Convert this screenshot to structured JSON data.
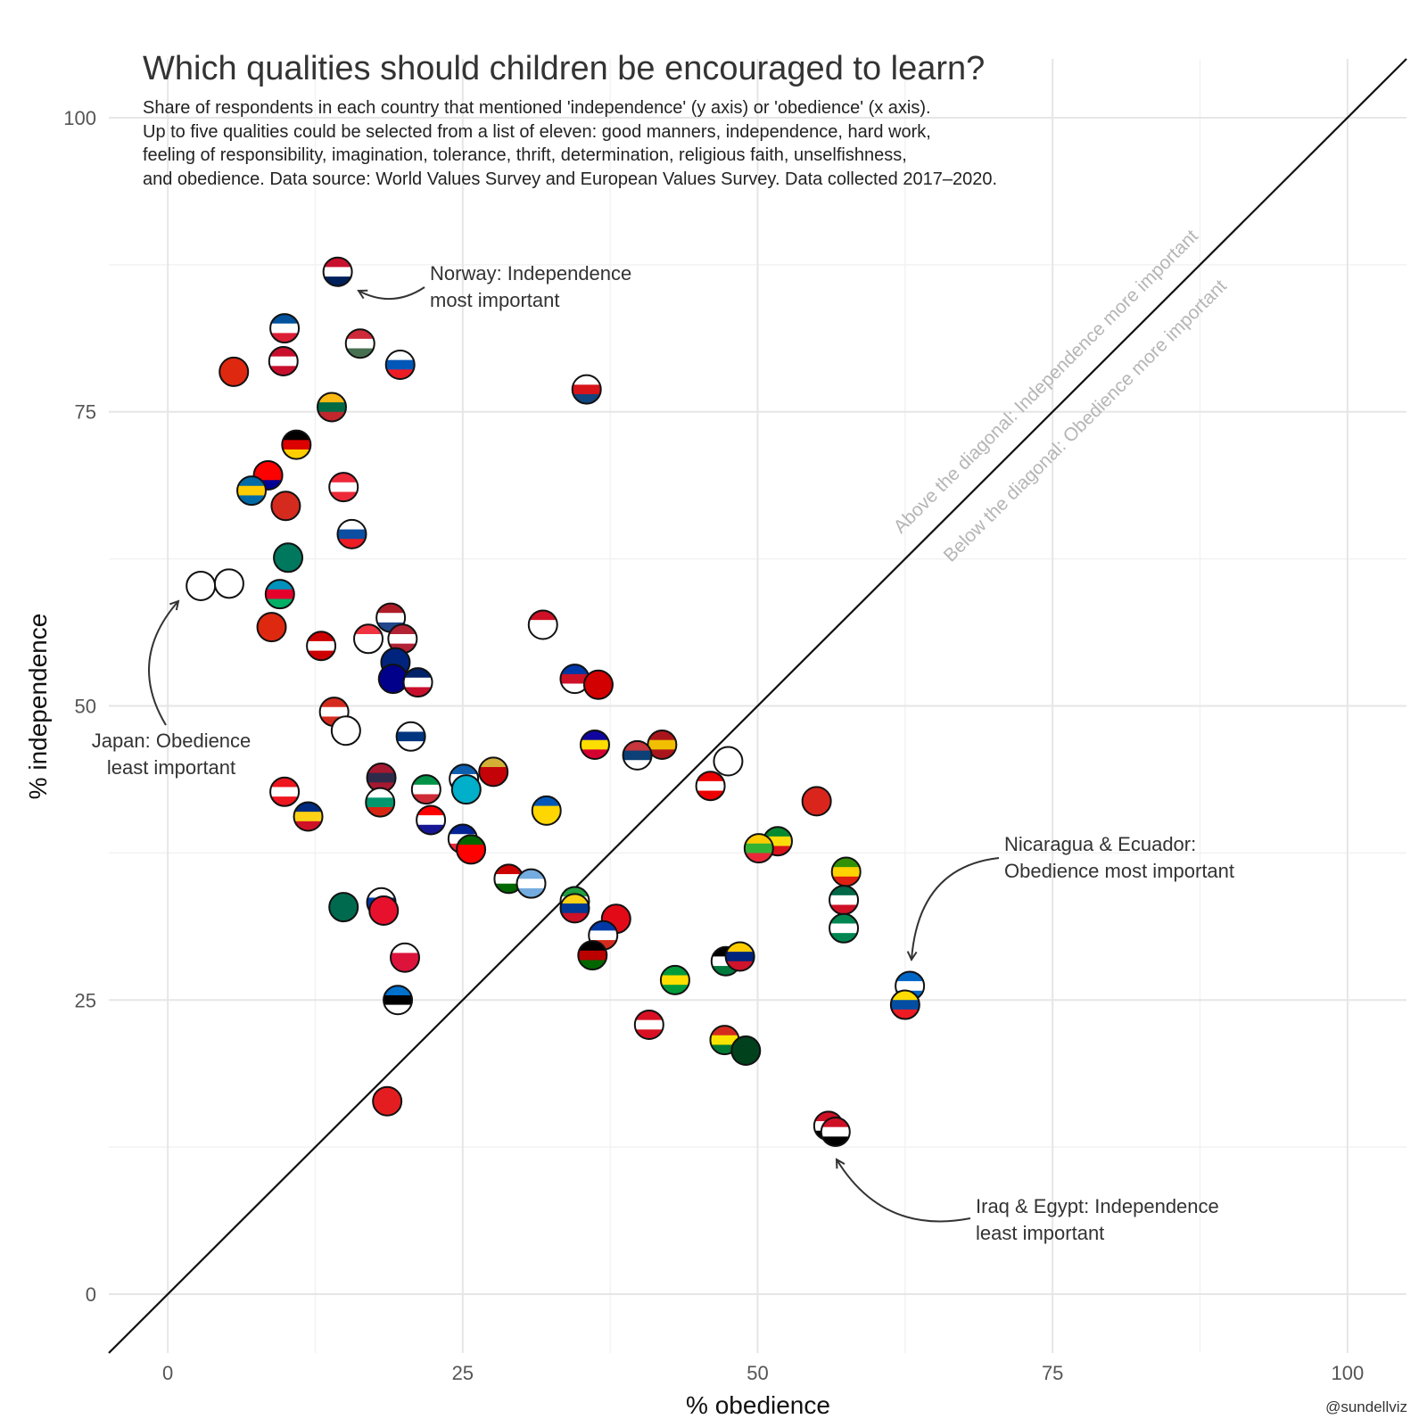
{
  "title": "Which qualities should children be encouraged to learn?",
  "subtitle_lines": [
    "Share of respondents in each country that mentioned 'independence' (y axis) or 'obedience' (x axis).",
    "Up to five qualities could be selected from a list of eleven: good manners, independence, hard work,",
    "feeling of responsibility, imagination, tolerance, thrift, determination, religious faith, unselfishness,",
    "and obedience. Data source: World Values Survey and European Values Survey. Data collected 2017–2020."
  ],
  "credit": "@sundellviz",
  "chart_data": {
    "type": "scatter",
    "title": "Which qualities should children be encouraged to learn?",
    "xlabel": "% obedience",
    "ylabel": "% independence",
    "xlim": [
      -5,
      105
    ],
    "ylim": [
      -5,
      105
    ],
    "x_ticks": [
      "0",
      "25",
      "50",
      "75",
      "100"
    ],
    "y_ticks": [
      "0",
      "25",
      "50",
      "75",
      "100"
    ],
    "diagonal_labels": {
      "above": "Above the diagonal: Independence more important",
      "below": "Below the diagonal: Obedience more important"
    },
    "annotations": [
      {
        "id": "norway",
        "lines": [
          "Norway: Independence",
          "most important"
        ]
      },
      {
        "id": "japan",
        "lines": [
          "Japan: Obedience",
          "least important"
        ]
      },
      {
        "id": "nicaragua",
        "lines": [
          "Nicaragua & Ecuador:",
          "Obedience most important"
        ]
      },
      {
        "id": "iraq",
        "lines": [
          "Iraq & Egypt: Independence",
          "least important"
        ]
      }
    ],
    "points": [
      {
        "flag": "Norway",
        "x": 14.4,
        "y": 86.9,
        "colors": [
          "#c8102e",
          "#ffffff",
          "#00205b"
        ]
      },
      {
        "flag": "Iceland",
        "x": 9.9,
        "y": 82.1,
        "colors": [
          "#02529c",
          "#ffffff",
          "#dc1e35"
        ]
      },
      {
        "flag": "Hungary",
        "x": 16.3,
        "y": 80.8,
        "colors": [
          "#ce2939",
          "#ffffff",
          "#477050"
        ]
      },
      {
        "flag": "Denmark",
        "x": 9.8,
        "y": 79.3,
        "colors": [
          "#c8102e",
          "#ffffff",
          "#c8102e"
        ]
      },
      {
        "flag": "Slovenia",
        "x": 19.7,
        "y": 79.0,
        "colors": [
          "#ffffff",
          "#0057b8",
          "#ed1c24"
        ]
      },
      {
        "flag": "China",
        "x": 5.6,
        "y": 78.4,
        "colors": [
          "#de2910",
          "#de2910",
          "#de2910"
        ]
      },
      {
        "flag": "Czechia",
        "x": 35.5,
        "y": 76.9,
        "colors": [
          "#ffffff",
          "#d7141a",
          "#11457e"
        ]
      },
      {
        "flag": "Lithuania",
        "x": 13.9,
        "y": 75.4,
        "colors": [
          "#fdb913",
          "#006a44",
          "#c1272d"
        ]
      },
      {
        "flag": "Germany",
        "x": 10.9,
        "y": 72.2,
        "colors": [
          "#000000",
          "#dd0000",
          "#ffce00"
        ]
      },
      {
        "flag": "Taiwan",
        "x": 8.5,
        "y": 69.6,
        "colors": [
          "#fe0000",
          "#fe0000",
          "#000095"
        ]
      },
      {
        "flag": "Sweden",
        "x": 7.1,
        "y": 68.3,
        "colors": [
          "#006aa7",
          "#fecc00",
          "#006aa7"
        ]
      },
      {
        "flag": "Austria",
        "x": 14.9,
        "y": 68.6,
        "colors": [
          "#ed2939",
          "#ffffff",
          "#ed2939"
        ]
      },
      {
        "flag": "Switzerland",
        "x": 10.0,
        "y": 67.0,
        "colors": [
          "#d52b1e",
          "#d52b1e",
          "#d52b1e"
        ]
      },
      {
        "flag": "Slovakia",
        "x": 15.6,
        "y": 64.6,
        "colors": [
          "#ffffff",
          "#0b4ea2",
          "#ee1c25"
        ]
      },
      {
        "flag": "Macau",
        "x": 10.2,
        "y": 62.6,
        "colors": [
          "#00785e",
          "#00785e",
          "#00785e"
        ]
      },
      {
        "flag": "Japan",
        "x": 2.8,
        "y": 60.2,
        "colors": [
          "#ffffff",
          "#ffffff",
          "#ffffff"
        ]
      },
      {
        "flag": "South Korea",
        "x": 5.2,
        "y": 60.4,
        "colors": [
          "#ffffff",
          "#ffffff",
          "#ffffff"
        ]
      },
      {
        "flag": "Azerbaijan",
        "x": 9.5,
        "y": 59.5,
        "colors": [
          "#0092bc",
          "#e4002b",
          "#00af66"
        ]
      },
      {
        "flag": "Netherlands",
        "x": 18.9,
        "y": 57.5,
        "colors": [
          "#ae1c28",
          "#ffffff",
          "#21468b"
        ]
      },
      {
        "flag": "Indonesia",
        "x": 31.8,
        "y": 56.9,
        "colors": [
          "#ce1126",
          "#ffffff",
          "#ffffff"
        ]
      },
      {
        "flag": "Hong Kong",
        "x": 8.8,
        "y": 56.7,
        "colors": [
          "#de2910",
          "#de2910",
          "#de2910"
        ]
      },
      {
        "flag": "Singapore",
        "x": 17.0,
        "y": 55.7,
        "colors": [
          "#ef3340",
          "#ffffff",
          "#ffffff"
        ]
      },
      {
        "flag": "USA",
        "x": 19.9,
        "y": 55.7,
        "colors": [
          "#b22234",
          "#ffffff",
          "#b22234"
        ]
      },
      {
        "flag": "Malaysia",
        "x": 13.0,
        "y": 55.1,
        "colors": [
          "#cc0001",
          "#ffffff",
          "#cc0001"
        ]
      },
      {
        "flag": "New Zealand",
        "x": 19.3,
        "y": 53.7,
        "colors": [
          "#00247d",
          "#00247d",
          "#00247d"
        ]
      },
      {
        "flag": "Australia",
        "x": 19.1,
        "y": 52.3,
        "colors": [
          "#00008b",
          "#00008b",
          "#00008b"
        ]
      },
      {
        "flag": "United Kingdom",
        "x": 21.2,
        "y": 52.0,
        "colors": [
          "#012169",
          "#ffffff",
          "#c8102e"
        ]
      },
      {
        "flag": "Philippines",
        "x": 34.5,
        "y": 52.3,
        "colors": [
          "#0038a8",
          "#ce1126",
          "#ffffff"
        ]
      },
      {
        "flag": "North Macedonia",
        "x": 36.5,
        "y": 51.8,
        "colors": [
          "#d20000",
          "#d20000",
          "#d20000"
        ]
      },
      {
        "flag": "Canada",
        "x": 14.1,
        "y": 49.5,
        "colors": [
          "#d52b1e",
          "#ffffff",
          "#d52b1e"
        ]
      },
      {
        "flag": "Georgia",
        "x": 15.1,
        "y": 47.9,
        "colors": [
          "#ffffff",
          "#ffffff",
          "#ffffff"
        ]
      },
      {
        "flag": "Finland",
        "x": 20.6,
        "y": 47.4,
        "colors": [
          "#ffffff",
          "#003580",
          "#ffffff"
        ]
      },
      {
        "flag": "Andorra",
        "x": 36.2,
        "y": 46.7,
        "colors": [
          "#10069f",
          "#fedd00",
          "#d50032"
        ]
      },
      {
        "flag": "Spain",
        "x": 41.9,
        "y": 46.7,
        "colors": [
          "#aa151b",
          "#f1bf00",
          "#aa151b"
        ]
      },
      {
        "flag": "Serbia",
        "x": 39.8,
        "y": 45.8,
        "colors": [
          "#c6363c",
          "#0c4076",
          "#ffffff"
        ]
      },
      {
        "flag": "Cyprus",
        "x": 47.5,
        "y": 45.3,
        "colors": [
          "#ffffff",
          "#ffffff",
          "#ffffff"
        ]
      },
      {
        "flag": "Thailand",
        "x": 18.1,
        "y": 43.9,
        "colors": [
          "#a51931",
          "#2d2a4a",
          "#a51931"
        ]
      },
      {
        "flag": "Greece",
        "x": 25.1,
        "y": 43.8,
        "colors": [
          "#0d5eaf",
          "#ffffff",
          "#0d5eaf"
        ]
      },
      {
        "flag": "Montenegro",
        "x": 27.6,
        "y": 44.4,
        "colors": [
          "#d4af37",
          "#c40308",
          "#c40308"
        ]
      },
      {
        "flag": "Kazakhstan",
        "x": 25.3,
        "y": 42.9,
        "colors": [
          "#00afca",
          "#00afca",
          "#00afca"
        ]
      },
      {
        "flag": "Lebanon",
        "x": 9.9,
        "y": 42.7,
        "colors": [
          "#ee161f",
          "#ffffff",
          "#ee161f"
        ]
      },
      {
        "flag": "Italy",
        "x": 21.9,
        "y": 42.9,
        "colors": [
          "#009246",
          "#ffffff",
          "#ce2b37"
        ]
      },
      {
        "flag": "Puerto Rico",
        "x": 46.0,
        "y": 43.2,
        "colors": [
          "#ed0000",
          "#ffffff",
          "#ed0000"
        ]
      },
      {
        "flag": "Vietnam",
        "x": 55.0,
        "y": 41.9,
        "colors": [
          "#da251d",
          "#da251d",
          "#da251d"
        ]
      },
      {
        "flag": "Bulgaria",
        "x": 18.0,
        "y": 41.8,
        "colors": [
          "#ffffff",
          "#00966e",
          "#d62612"
        ]
      },
      {
        "flag": "Ukraine",
        "x": 32.1,
        "y": 41.1,
        "colors": [
          "#0057b7",
          "#ffd700",
          "#ffd700"
        ]
      },
      {
        "flag": "Romania",
        "x": 11.9,
        "y": 40.6,
        "colors": [
          "#002b7f",
          "#fcd116",
          "#ce1126"
        ]
      },
      {
        "flag": "Croatia",
        "x": 22.3,
        "y": 40.3,
        "colors": [
          "#ff0000",
          "#ffffff",
          "#171796"
        ]
      },
      {
        "flag": "France",
        "x": 25.0,
        "y": 38.7,
        "colors": [
          "#002395",
          "#ffffff",
          "#ed2939"
        ]
      },
      {
        "flag": "Portugal",
        "x": 25.7,
        "y": 37.8,
        "colors": [
          "#006600",
          "#ff0000",
          "#ff0000"
        ]
      },
      {
        "flag": "Ethiopia",
        "x": 51.7,
        "y": 38.5,
        "colors": [
          "#078930",
          "#fcdd09",
          "#da121a"
        ]
      },
      {
        "flag": "Myanmar",
        "x": 50.1,
        "y": 37.9,
        "colors": [
          "#fecb00",
          "#34b233",
          "#ea2839"
        ]
      },
      {
        "flag": "Zimbabwe",
        "x": 57.5,
        "y": 35.9,
        "colors": [
          "#319208",
          "#ffd200",
          "#de2010"
        ]
      },
      {
        "flag": "Tajikistan",
        "x": 28.9,
        "y": 35.3,
        "colors": [
          "#cc0000",
          "#ffffff",
          "#006600"
        ]
      },
      {
        "flag": "Argentina",
        "x": 30.8,
        "y": 34.9,
        "colors": [
          "#74acdf",
          "#ffffff",
          "#74acdf"
        ]
      },
      {
        "flag": "Bangladesh",
        "x": 14.9,
        "y": 32.9,
        "colors": [
          "#006a4e",
          "#006a4e",
          "#006a4e"
        ]
      },
      {
        "flag": "Russia",
        "x": 18.1,
        "y": 33.3,
        "colors": [
          "#ffffff",
          "#0039a6",
          "#d52b1e"
        ]
      },
      {
        "flag": "Kyrgyzstan",
        "x": 18.3,
        "y": 32.6,
        "colors": [
          "#e8112d",
          "#e8112d",
          "#e8112d"
        ]
      },
      {
        "flag": "Iran",
        "x": 34.5,
        "y": 33.4,
        "colors": [
          "#239f40",
          "#ffffff",
          "#da0000"
        ]
      },
      {
        "flag": "Colombia",
        "x": 34.5,
        "y": 32.8,
        "colors": [
          "#fcd116",
          "#003893",
          "#ce1126"
        ]
      },
      {
        "flag": "Mexico",
        "x": 57.3,
        "y": 33.5,
        "colors": [
          "#006847",
          "#ffffff",
          "#ce1126"
        ]
      },
      {
        "flag": "Turkey",
        "x": 38.0,
        "y": 31.9,
        "colors": [
          "#e30a17",
          "#e30a17",
          "#e30a17"
        ]
      },
      {
        "flag": "Chile",
        "x": 36.9,
        "y": 30.5,
        "colors": [
          "#0039a6",
          "#ffffff",
          "#d52b1e"
        ]
      },
      {
        "flag": "Nigeria",
        "x": 57.3,
        "y": 31.1,
        "colors": [
          "#008751",
          "#ffffff",
          "#008751"
        ]
      },
      {
        "flag": "Poland",
        "x": 20.1,
        "y": 28.6,
        "colors": [
          "#ffffff",
          "#dc143c",
          "#dc143c"
        ]
      },
      {
        "flag": "Kenya",
        "x": 36.0,
        "y": 28.8,
        "colors": [
          "#000000",
          "#bb0000",
          "#006600"
        ]
      },
      {
        "flag": "Jordan",
        "x": 47.3,
        "y": 28.3,
        "colors": [
          "#000000",
          "#ffffff",
          "#007a3d"
        ]
      },
      {
        "flag": "Venezuela",
        "x": 48.5,
        "y": 28.7,
        "colors": [
          "#ffcc00",
          "#00247d",
          "#cf142b"
        ]
      },
      {
        "flag": "Brazil",
        "x": 43.0,
        "y": 26.7,
        "colors": [
          "#009c3b",
          "#ffdf00",
          "#009c3b"
        ]
      },
      {
        "flag": "Estonia",
        "x": 19.5,
        "y": 25.0,
        "colors": [
          "#0072ce",
          "#000000",
          "#ffffff"
        ]
      },
      {
        "flag": "Nicaragua",
        "x": 62.9,
        "y": 26.2,
        "colors": [
          "#0067c6",
          "#ffffff",
          "#0067c6"
        ]
      },
      {
        "flag": "Ecuador",
        "x": 62.5,
        "y": 24.6,
        "colors": [
          "#ffdd00",
          "#034ea2",
          "#ed1c24"
        ]
      },
      {
        "flag": "Peru",
        "x": 40.8,
        "y": 22.9,
        "colors": [
          "#d91023",
          "#ffffff",
          "#d91023"
        ]
      },
      {
        "flag": "Bolivia",
        "x": 47.2,
        "y": 21.6,
        "colors": [
          "#d52b1e",
          "#f9e300",
          "#007934"
        ]
      },
      {
        "flag": "Pakistan",
        "x": 49.0,
        "y": 20.7,
        "colors": [
          "#01411c",
          "#01411c",
          "#01411c"
        ]
      },
      {
        "flag": "Albania",
        "x": 18.6,
        "y": 16.4,
        "colors": [
          "#e41e20",
          "#e41e20",
          "#e41e20"
        ]
      },
      {
        "flag": "Egypt",
        "x": 56.0,
        "y": 14.3,
        "colors": [
          "#ce1126",
          "#ffffff",
          "#000000"
        ]
      },
      {
        "flag": "Iraq",
        "x": 56.6,
        "y": 13.8,
        "colors": [
          "#ce1126",
          "#ffffff",
          "#000000"
        ]
      }
    ]
  }
}
